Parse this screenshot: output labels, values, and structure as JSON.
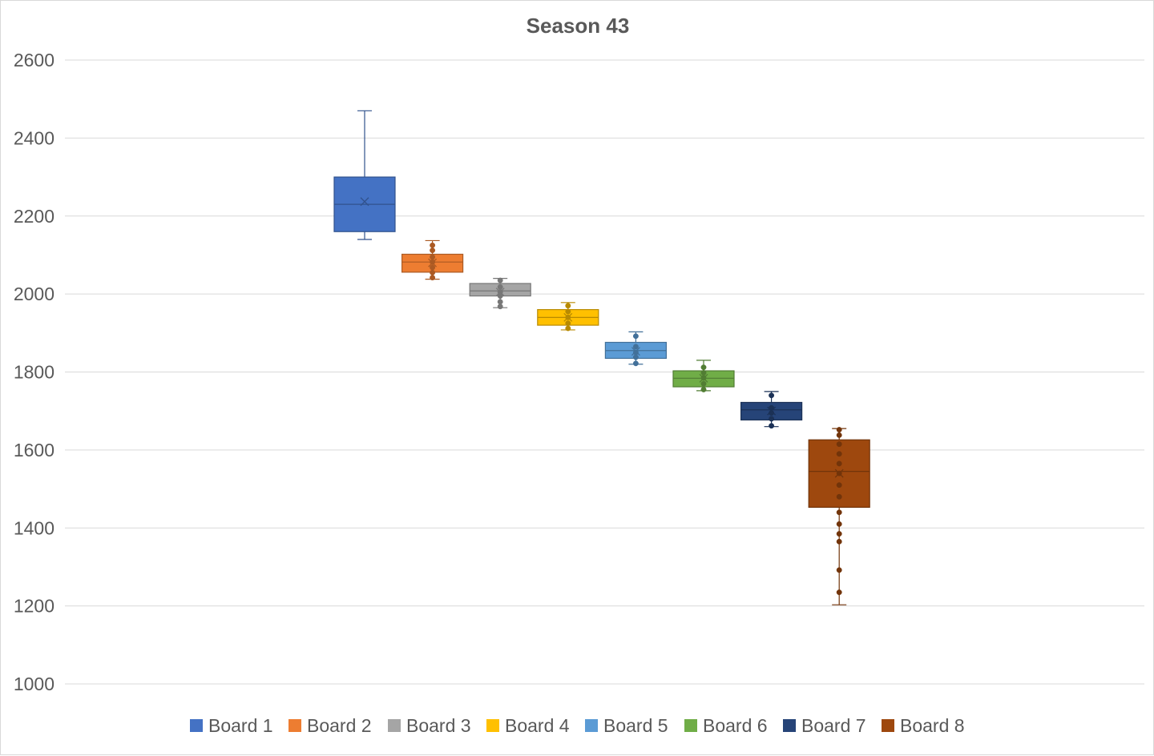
{
  "chart_data": {
    "type": "box",
    "title": "Season 43",
    "xlabel": "",
    "ylabel": "",
    "ylim": [
      1000,
      2600
    ],
    "yticks": [
      "1000",
      "1200",
      "1400",
      "1600",
      "1800",
      "2000",
      "2200",
      "2400",
      "2600"
    ],
    "grid": true,
    "legend_position": "bottom",
    "series": [
      {
        "name": "Board 1",
        "color": "#4472C4",
        "min": 2140,
        "q1": 2160,
        "median": 2230,
        "q3": 2300,
        "max": 2470,
        "mean": 2237,
        "points": []
      },
      {
        "name": "Board 2",
        "color": "#ED7D31",
        "min": 2038,
        "q1": 2056,
        "median": 2082,
        "q3": 2102,
        "max": 2137,
        "mean": 2080,
        "points": [
          2042,
          2055,
          2068,
          2082,
          2095,
          2112,
          2125
        ]
      },
      {
        "name": "Board 3",
        "color": "#A5A5A5",
        "min": 1965,
        "q1": 1995,
        "median": 2008,
        "q3": 2027,
        "max": 2040,
        "mean": 2005,
        "points": [
          1968,
          1980,
          1995,
          2005,
          2018,
          2035
        ]
      },
      {
        "name": "Board 4",
        "color": "#FFC000",
        "min": 1908,
        "q1": 1920,
        "median": 1940,
        "q3": 1960,
        "max": 1978,
        "mean": 1940,
        "points": [
          1912,
          1925,
          1940,
          1955,
          1970
        ]
      },
      {
        "name": "Board 5",
        "color": "#5B9BD5",
        "min": 1820,
        "q1": 1835,
        "median": 1855,
        "q3": 1876,
        "max": 1903,
        "mean": 1853,
        "points": [
          1822,
          1838,
          1850,
          1865,
          1892
        ]
      },
      {
        "name": "Board 6",
        "color": "#70AD47",
        "min": 1752,
        "q1": 1762,
        "median": 1784,
        "q3": 1803,
        "max": 1830,
        "mean": 1784,
        "points": [
          1755,
          1770,
          1785,
          1798,
          1812
        ]
      },
      {
        "name": "Board 7",
        "color": "#264478",
        "min": 1660,
        "q1": 1677,
        "median": 1703,
        "q3": 1722,
        "max": 1750,
        "mean": 1700,
        "points": [
          1662,
          1680,
          1695,
          1708,
          1740
        ]
      },
      {
        "name": "Board 8",
        "color": "#9E480E",
        "min": 1203,
        "q1": 1453,
        "median": 1545,
        "q3": 1626,
        "max": 1655,
        "mean": 1540,
        "points": [
          1235,
          1292,
          1365,
          1385,
          1410,
          1440,
          1480,
          1510,
          1540,
          1565,
          1590,
          1615,
          1638,
          1652
        ]
      }
    ]
  }
}
